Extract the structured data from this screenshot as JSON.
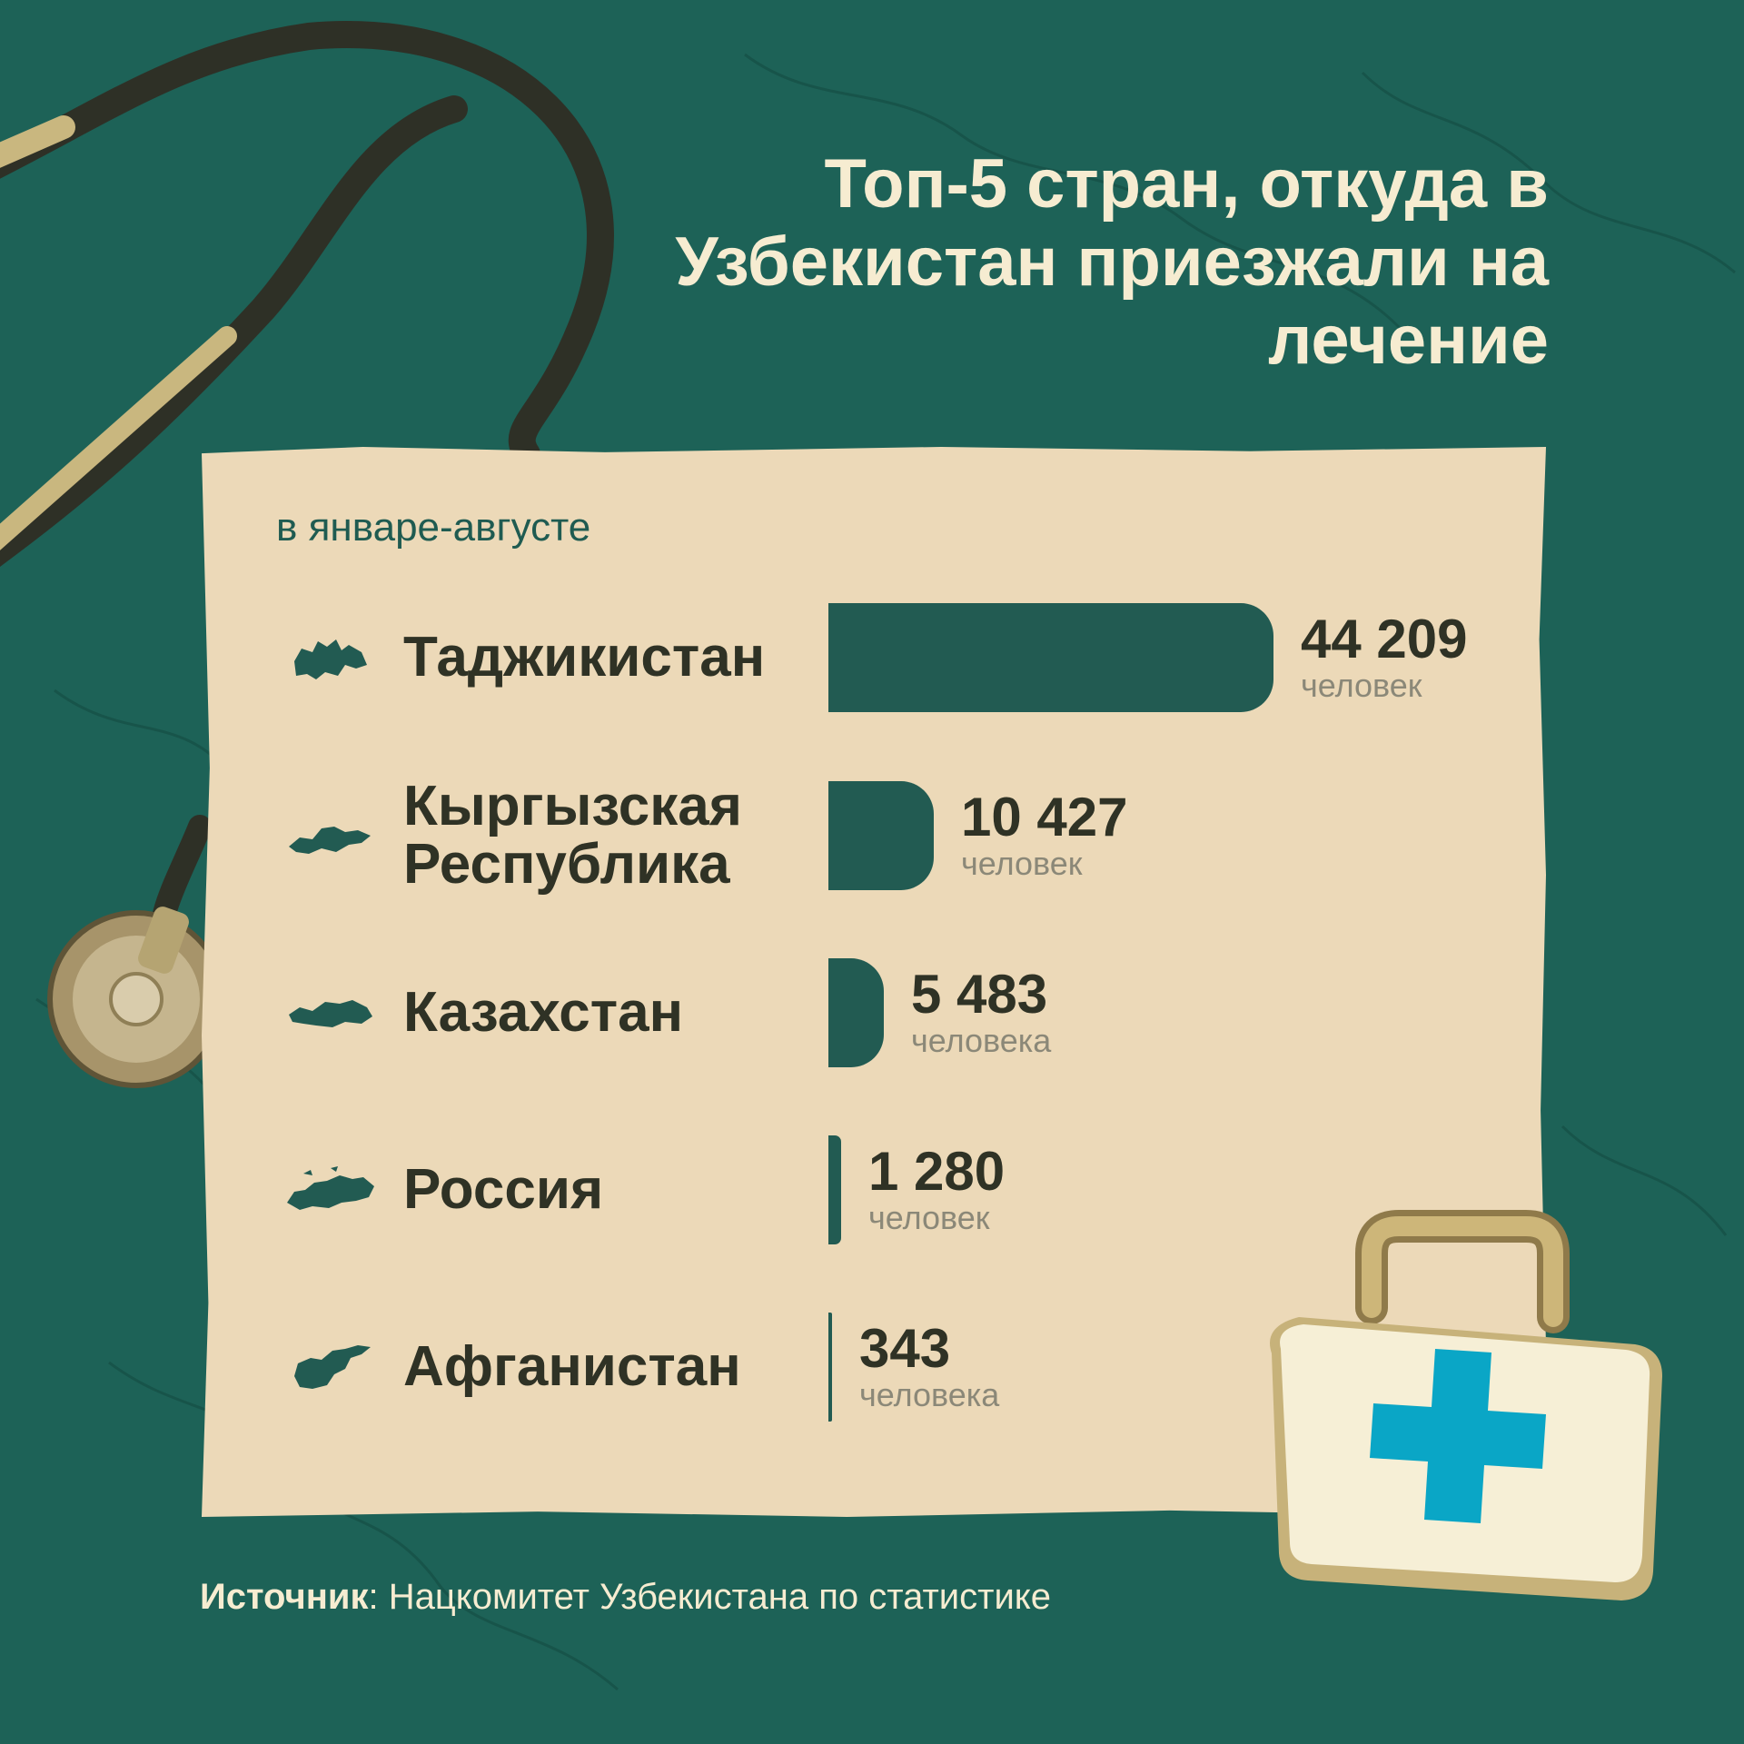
{
  "title": "Топ-5 стран, откуда в Узбекистан приезжали на лечение",
  "subtitle": "в январе-августе",
  "source_label": "Источник",
  "source_text": ": Нацкомитет Узбекистана по статистике",
  "colors": {
    "background": "#1d6257",
    "card": "#ecd9b8",
    "bar": "#225b52",
    "title": "#f6ecd1",
    "medkit_cross": "#0aa6c6"
  },
  "chart_data": {
    "type": "bar",
    "orientation": "horizontal",
    "categories": [
      "Таджикистан",
      "Кыргызская Республика",
      "Казахстан",
      "Россия",
      "Афганистан"
    ],
    "values": [
      44209,
      10427,
      5483,
      1280,
      343
    ],
    "value_labels": [
      "44 209",
      "10 427",
      "5 483",
      "1 280",
      "343"
    ],
    "unit_labels": [
      "человек",
      "человек",
      "человека",
      "человек",
      "человека"
    ],
    "icons": [
      "tajikistan-map-icon",
      "kyrgyzstan-map-icon",
      "kazakhstan-map-icon",
      "russia-map-icon",
      "afghanistan-map-icon"
    ]
  }
}
